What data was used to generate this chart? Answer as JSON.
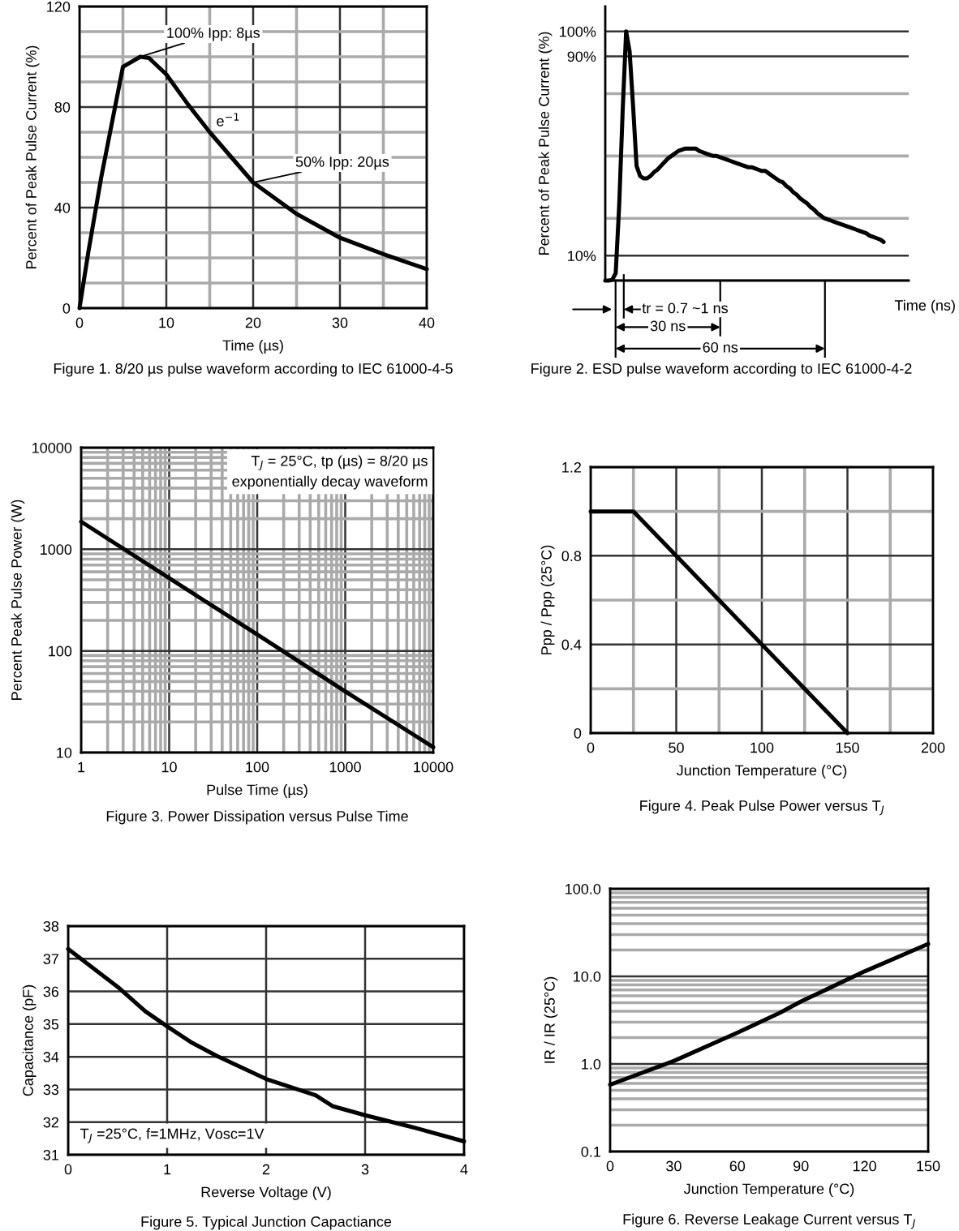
{
  "chart_data": [
    {
      "type": "line",
      "xlabel": "Time (µs)",
      "ylabel": "Percent of Peak Pulse Current (%)",
      "x": [
        0,
        1,
        2.5,
        5,
        7,
        8,
        10,
        12.5,
        15,
        17.5,
        20,
        25,
        30,
        35,
        40
      ],
      "series": [
        {
          "color": "#000000",
          "values": [
            0,
            22,
            52,
            96,
            100,
            99.5,
            93,
            81,
            70,
            60,
            50,
            37.5,
            28,
            21.5,
            15.5
          ]
        }
      ],
      "xlim": [
        0,
        40
      ],
      "ylim": [
        0,
        120
      ],
      "xticks": [
        0,
        {
          "value": 5,
          "label": null
        },
        10,
        {
          "value": 15,
          "label": null
        },
        20,
        {
          "value": 25,
          "label": null
        },
        30,
        {
          "value": 35,
          "label": null
        },
        40
      ],
      "yticks": [
        0,
        {
          "value": 10,
          "label": null
        },
        {
          "value": 20,
          "label": null
        },
        {
          "value": 30,
          "label": null
        },
        40,
        {
          "value": 50,
          "label": null
        },
        {
          "value": 60,
          "label": null
        },
        {
          "value": 70,
          "label": null
        },
        80,
        {
          "value": 90,
          "label": null
        },
        {
          "value": 100,
          "label": null
        },
        {
          "value": 110,
          "label": null
        },
        120
      ],
      "grid": true,
      "annotations": [
        {
          "text": "100% Ipp: 8µs",
          "x": 7,
          "y": 100
        },
        {
          "text": "e$^{−1}$",
          "x": 15,
          "y": 70
        },
        {
          "text": "50% Ipp: 20µs",
          "x": 20,
          "y": 50
        },
        "Figure 1. 8/20 µs pulse waveform according to IEC 61000-4-5"
      ]
    },
    {
      "type": "line",
      "xlabel": "Time (ns)",
      "ylabel": "Percent of Peak Pulse Current (%)",
      "categories": [
        null,
        null,
        null,
        null,
        null,
        null,
        null,
        null,
        null,
        null,
        null,
        null,
        null,
        null,
        null,
        null,
        null,
        null,
        null,
        null,
        null,
        null,
        null,
        null,
        null,
        null,
        null,
        null,
        null,
        null,
        null,
        null,
        null,
        null,
        null,
        null,
        null,
        null,
        null,
        null,
        null,
        null,
        null,
        null,
        null,
        null,
        null,
        null,
        null,
        null,
        null,
        null,
        null,
        null,
        null,
        null,
        null,
        null,
        null,
        null,
        null,
        null,
        null,
        null,
        null,
        null,
        null,
        null,
        null,
        null,
        null,
        null,
        null,
        null,
        null,
        null,
        null,
        null,
        null,
        null,
        null
      ],
      "series": [
        {
          "color": "#000000",
          "values": [
            0,
            0,
            0.3,
            3,
            30,
            68,
            100,
            92,
            70,
            46,
            42,
            41,
            41,
            42,
            43.5,
            44.5,
            46,
            47.5,
            49,
            50,
            51,
            52,
            52.5,
            53,
            53,
            53,
            53,
            52,
            51.5,
            51,
            50.5,
            50,
            50,
            49.5,
            49,
            48.5,
            48,
            47.5,
            47,
            46.5,
            46,
            45.5,
            45.5,
            45,
            44.5,
            44,
            44,
            43,
            42,
            41,
            40,
            39.5,
            38,
            37,
            35.5,
            34.5,
            33,
            32,
            31,
            29.5,
            28.5,
            27,
            26,
            25,
            24.5,
            24,
            23.5,
            23,
            22.5,
            22,
            21.5,
            21,
            20.5,
            20,
            19.5,
            19,
            18,
            17.5,
            17,
            16.5,
            15.5
          ]
        }
      ],
      "ylim": [
        0,
        110
      ],
      "yticks": [
        {
          "value": 0,
          "label": null
        },
        {
          "value": 10,
          "label": "10%"
        },
        {
          "value": 25,
          "label": null
        },
        {
          "value": 50,
          "label": null
        },
        {
          "value": 75,
          "label": null
        },
        {
          "value": 90,
          "label": "90%"
        },
        {
          "value": 100,
          "label": "100%"
        }
      ],
      "grid": "y",
      "tick_labels": "y",
      "annotations": [
        "tr = 0.7 ~1 ns",
        "30 ns",
        "60 ns",
        "Figure 2. ESD pulse waveform according to IEC 61000-4-2"
      ]
    },
    {
      "type": "line",
      "xlabel": "Pulse Time (µs)",
      "ylabel": "Percent Peak Pulse Power (W)",
      "log": "xy",
      "x": [
        1,
        10,
        100,
        1000,
        10000
      ],
      "series": [
        {
          "color": "#000000",
          "values": [
            1870,
            520,
            145,
            40,
            11.3
          ]
        }
      ],
      "xlim": [
        1,
        10000
      ],
      "ylim": [
        10,
        10000
      ],
      "xticks": [
        1,
        {
          "value": 2,
          "label": null
        },
        {
          "value": 3,
          "label": null
        },
        {
          "value": 4,
          "label": null
        },
        {
          "value": 5,
          "label": null
        },
        {
          "value": 6,
          "label": null
        },
        {
          "value": 7,
          "label": null
        },
        {
          "value": 8,
          "label": null
        },
        {
          "value": 9,
          "label": null
        },
        10,
        {
          "value": 20,
          "label": null
        },
        {
          "value": 30,
          "label": null
        },
        {
          "value": 40,
          "label": null
        },
        {
          "value": 50,
          "label": null
        },
        {
          "value": 60,
          "label": null
        },
        {
          "value": 70,
          "label": null
        },
        {
          "value": 80,
          "label": null
        },
        {
          "value": 90,
          "label": null
        },
        100,
        {
          "value": 200,
          "label": null
        },
        {
          "value": 300,
          "label": null
        },
        {
          "value": 400,
          "label": null
        },
        {
          "value": 500,
          "label": null
        },
        {
          "value": 600,
          "label": null
        },
        {
          "value": 700,
          "label": null
        },
        {
          "value": 800,
          "label": null
        },
        {
          "value": 900,
          "label": null
        },
        1000,
        {
          "value": 2000,
          "label": null
        },
        {
          "value": 3000,
          "label": null
        },
        {
          "value": 4000,
          "label": null
        },
        {
          "value": 5000,
          "label": null
        },
        {
          "value": 6000,
          "label": null
        },
        {
          "value": 7000,
          "label": null
        },
        {
          "value": 8000,
          "label": null
        },
        {
          "value": 9000,
          "label": null
        },
        10000
      ],
      "yticks": [
        10,
        {
          "value": 20,
          "label": null
        },
        {
          "value": 30,
          "label": null
        },
        {
          "value": 40,
          "label": null
        },
        {
          "value": 50,
          "label": null
        },
        {
          "value": 60,
          "label": null
        },
        {
          "value": 70,
          "label": null
        },
        {
          "value": 80,
          "label": null
        },
        {
          "value": 90,
          "label": null
        },
        100,
        {
          "value": 200,
          "label": null
        },
        {
          "value": 300,
          "label": null
        },
        {
          "value": 400,
          "label": null
        },
        {
          "value": 500,
          "label": null
        },
        {
          "value": 600,
          "label": null
        },
        {
          "value": 700,
          "label": null
        },
        {
          "value": 800,
          "label": null
        },
        {
          "value": 900,
          "label": null
        },
        1000,
        {
          "value": 2000,
          "label": null
        },
        {
          "value": 3000,
          "label": null
        },
        {
          "value": 4000,
          "label": null
        },
        {
          "value": 5000,
          "label": null
        },
        {
          "value": 6000,
          "label": null
        },
        {
          "value": 7000,
          "label": null
        },
        {
          "value": 8000,
          "label": null
        },
        {
          "value": 9000,
          "label": null
        },
        10000
      ],
      "grid": true,
      "annotations": [
        "T$_{J}$ = 25°C, tp (µs) = 8/20 µs\nexponentially decay waveform",
        "Figure 3. Power Dissipation versus Pulse Time"
      ]
    },
    {
      "type": "line",
      "xlabel": "Junction Temperature (°C)",
      "ylabel": "Ppp / Ppp (25°C)",
      "x": [
        0,
        25,
        150
      ],
      "series": [
        {
          "color": "#000000",
          "values": [
            1,
            1,
            0
          ]
        }
      ],
      "xlim": [
        0,
        200
      ],
      "ylim": [
        0,
        1.2
      ],
      "xticks": [
        0,
        {
          "value": 25,
          "label": null
        },
        50,
        {
          "value": 75,
          "label": null
        },
        100,
        {
          "value": 125,
          "label": null
        },
        150,
        {
          "value": 175,
          "label": null
        },
        200
      ],
      "yticks": [
        0,
        {
          "value": 0.2,
          "label": null
        },
        0.4,
        {
          "value": 0.6,
          "label": null
        },
        0.8,
        {
          "value": 1.0,
          "label": null
        },
        1.2
      ],
      "grid": true,
      "annotations": [
        "Figure 4. Peak Pulse Power versus T$_{J}$"
      ]
    },
    {
      "type": "line",
      "xlabel": "Reverse Voltage (V)",
      "ylabel": "Capacitance (pF)",
      "x": [
        0,
        0.5,
        0.78,
        1,
        1.25,
        1.5,
        2,
        2.5,
        2.67,
        3,
        3.5,
        4
      ],
      "series": [
        {
          "color": "#000000",
          "values": [
            37.3,
            36.14,
            35.39,
            34.93,
            34.43,
            34.03,
            33.32,
            32.82,
            32.49,
            32.21,
            31.83,
            31.41
          ]
        }
      ],
      "xlim": [
        0,
        4
      ],
      "ylim": [
        31,
        38
      ],
      "xticks": [
        0,
        1,
        2,
        3,
        4
      ],
      "yticks": [
        31,
        32,
        33,
        34,
        35,
        36,
        37,
        38
      ],
      "grid": true,
      "annotations": [
        "T$_{J}$ =25°C, f=1MHz, Vosc=1V",
        "Figure 5. Typical Junction Capactiance"
      ]
    },
    {
      "type": "line",
      "xlabel": "Junction Temperature (°C)",
      "ylabel": "IR / IR (25°C)",
      "log": "y",
      "x": [
        0,
        30,
        60,
        80,
        90,
        120,
        150
      ],
      "series": [
        {
          "color": "#000000",
          "values": [
            0.58,
            1.08,
            2.27,
            3.83,
            5.16,
            11.4,
            23.5
          ]
        }
      ],
      "xlim": [
        0,
        150
      ],
      "ylim": [
        0.1,
        100
      ],
      "xticks": [
        0,
        30,
        60,
        90,
        120,
        150
      ],
      "yticks": [
        0.1,
        {
          "value": 0.2,
          "label": null
        },
        {
          "value": 0.3,
          "label": null
        },
        {
          "value": 0.4,
          "label": null
        },
        {
          "value": 0.5,
          "label": null
        },
        {
          "value": 0.6,
          "label": null
        },
        {
          "value": 0.7,
          "label": null
        },
        {
          "value": 0.8,
          "label": null
        },
        {
          "value": 0.9,
          "label": null
        },
        {
          "value": 1,
          "label": "1.0"
        },
        {
          "value": 2,
          "label": null
        },
        {
          "value": 3,
          "label": null
        },
        {
          "value": 4,
          "label": null
        },
        {
          "value": 5,
          "label": null
        },
        {
          "value": 6,
          "label": null
        },
        {
          "value": 7,
          "label": null
        },
        {
          "value": 8,
          "label": null
        },
        {
          "value": 9,
          "label": null
        },
        {
          "value": 10,
          "label": "10.0"
        },
        {
          "value": 20,
          "label": null
        },
        {
          "value": 30,
          "label": null
        },
        {
          "value": 40,
          "label": null
        },
        {
          "value": 50,
          "label": null
        },
        {
          "value": 60,
          "label": null
        },
        {
          "value": 70,
          "label": null
        },
        {
          "value": 80,
          "label": null
        },
        {
          "value": 90,
          "label": null
        },
        {
          "value": 100,
          "label": "100.0"
        }
      ],
      "grid": "y",
      "annotations": [
        "Figure 6. Reverse Leakage Current versus T$_{J}$"
      ]
    }
  ]
}
